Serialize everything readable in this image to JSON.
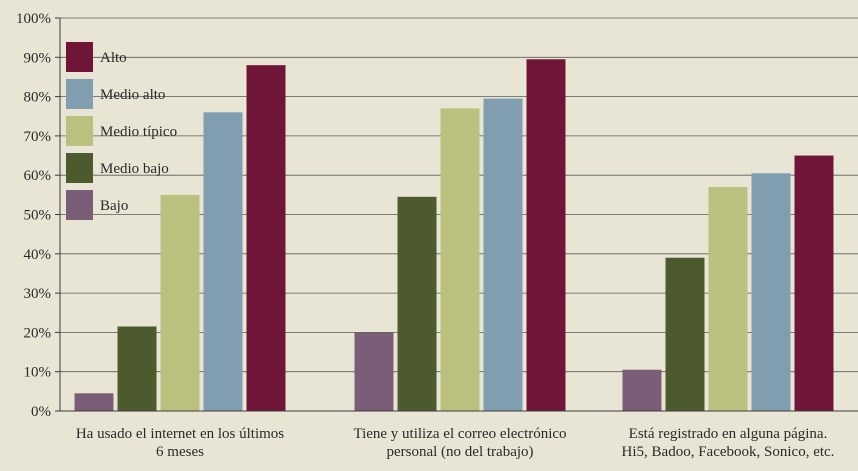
{
  "chart_data": {
    "type": "bar",
    "title": "",
    "xlabel": "",
    "ylabel": "",
    "ylim": [
      0,
      100
    ],
    "yticks": [
      0,
      10,
      20,
      30,
      40,
      50,
      60,
      70,
      80,
      90,
      100
    ],
    "ytick_labels": [
      "0%",
      "10%",
      "20%",
      "30%",
      "40%",
      "50%",
      "60%",
      "70%",
      "80%",
      "90%",
      "100%"
    ],
    "grid": true,
    "legend_position": "top-left",
    "categories": [
      [
        "Ha usado el internet en los últimos",
        "6 meses"
      ],
      [
        "Tiene y utiliza el correo electrónico",
        "personal (no del trabajo)"
      ],
      [
        "Está registrado en alguna página.",
        "Hi5, Badoo, Facebook, Sonico, etc."
      ]
    ],
    "series": [
      {
        "name": "Bajo",
        "color": "#7a5e78",
        "values": [
          4.5,
          20,
          10.5
        ]
      },
      {
        "name": "Medio bajo",
        "color": "#4d5a2e",
        "values": [
          21.5,
          54.5,
          39
        ]
      },
      {
        "name": "Medio típico",
        "color": "#bac17f",
        "values": [
          55,
          77,
          57
        ]
      },
      {
        "name": "Medio alto",
        "color": "#819eb1",
        "values": [
          76,
          79.5,
          60.5
        ]
      },
      {
        "name": "Alto",
        "color": "#6e1538",
        "values": [
          88,
          89.5,
          65
        ]
      }
    ],
    "legend_order": [
      "Alto",
      "Medio alto",
      "Medio típico",
      "Medio bajo",
      "Bajo"
    ]
  }
}
